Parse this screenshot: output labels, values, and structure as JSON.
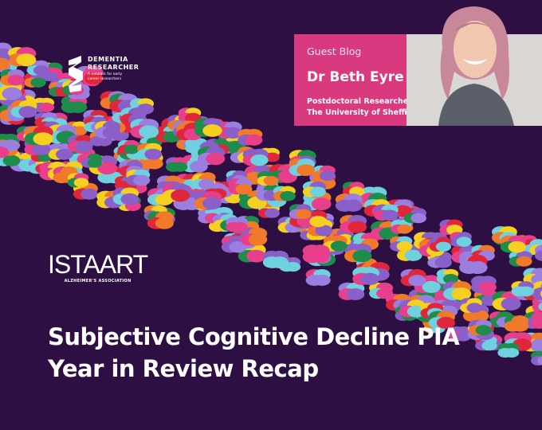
{
  "logos": {
    "dementia_researcher": {
      "name": "DEMENTIA RESEARCHER",
      "tagline": "A network for early career researchers"
    },
    "istaart": {
      "name": "ISTAART",
      "subtitle": "ALZHEIMER'S ASSOCIATION"
    }
  },
  "card": {
    "label": "Guest Blog",
    "author": "Dr Beth Eyre",
    "role": "Postdoctoral Researcher",
    "institution": "The University of Sheffield"
  },
  "title": {
    "line1": "Subjective Cognitive Decline PIA",
    "line2": "Year in Review Recap"
  },
  "colors": {
    "background": "#2d0f44",
    "card": "#d9397e",
    "pattern": [
      "#8a5fc7",
      "#6fd0e0",
      "#f07a2a",
      "#f5d020",
      "#e0263a",
      "#1e8c4a",
      "#e83f8c",
      "#9b7fe0"
    ]
  }
}
